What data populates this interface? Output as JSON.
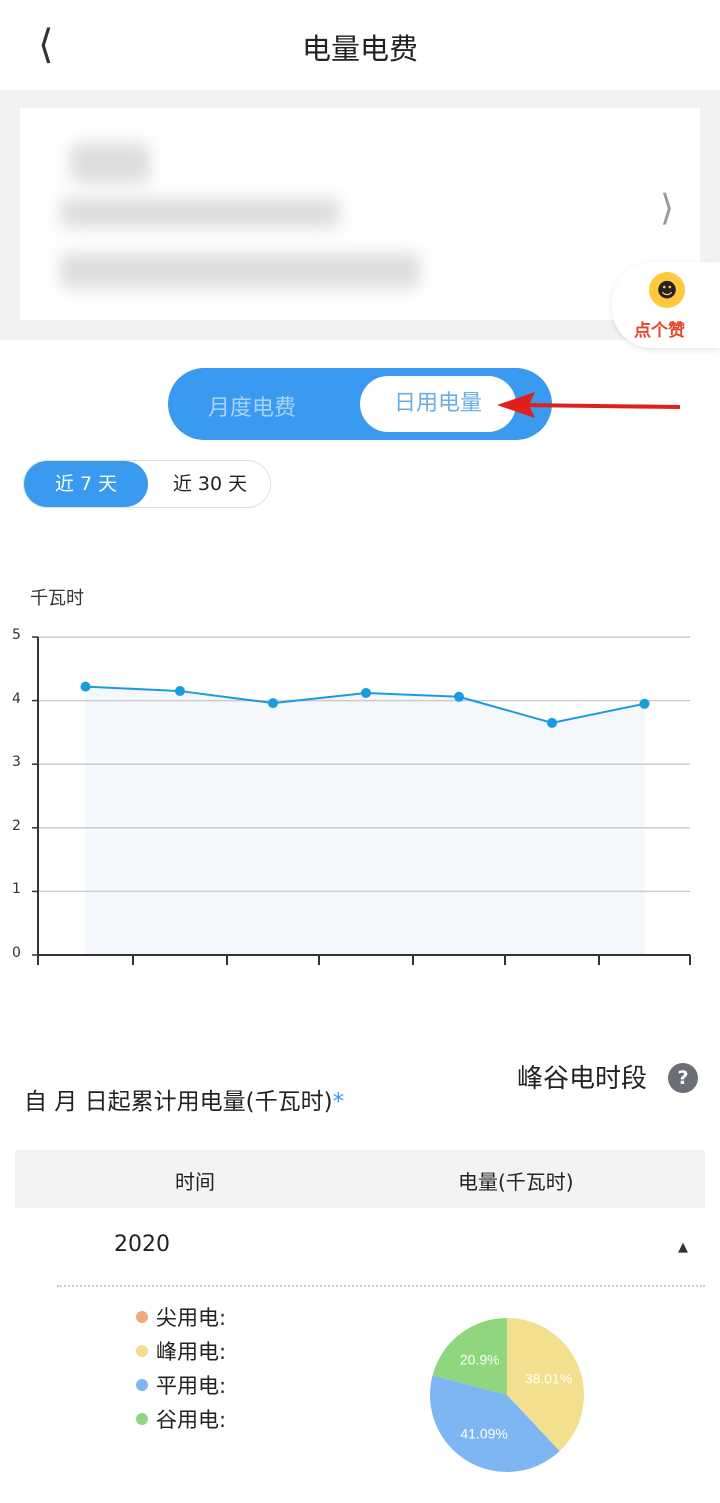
{
  "header": {
    "title": "电量电费",
    "back_icon": "chevron-left-icon"
  },
  "account_card": {
    "chevron_icon": "chevron-right-icon"
  },
  "like_badge": {
    "label": "点个赞",
    "icon": "smile-face-icon"
  },
  "mode_toggle": {
    "options": [
      "月度电费",
      "日用电量"
    ],
    "selected": "日用电量"
  },
  "range_toggle": {
    "options": [
      "近 7 天",
      "近 30 天"
    ],
    "selected": "近 7 天"
  },
  "chart_data": {
    "type": "area",
    "ylabel": "千瓦时",
    "ylim": [
      0,
      5
    ],
    "yticks": [
      "0",
      "1",
      "2",
      "3",
      "4",
      "5"
    ],
    "values": [
      4.22,
      4.15,
      3.96,
      4.12,
      4.06,
      3.65,
      3.95
    ],
    "grid": true,
    "line_color": "#1a9be0",
    "fill_color": "#f4f7fc"
  },
  "cumulative": {
    "title": "自  月  日起累计用电量(千瓦时)",
    "star": "*"
  },
  "peak_valley": {
    "label": "峰谷电时段",
    "help_icon": "?"
  },
  "table": {
    "headers": [
      "时间",
      "电量(千瓦时)"
    ],
    "year": "2020"
  },
  "pie": {
    "legend": [
      {
        "label": "尖用电:",
        "color": "#f0a97a"
      },
      {
        "label": "峰用电:",
        "color": "#f3dd8f"
      },
      {
        "label": "平用电:",
        "color": "#7db6f2"
      },
      {
        "label": "谷用电:",
        "color": "#8fd67e"
      }
    ],
    "slices": [
      {
        "label": "38.01%",
        "value": 38.01,
        "color": "#f3e08f"
      },
      {
        "label": "41.09%",
        "value": 41.09,
        "color": "#7db6f2"
      },
      {
        "label": "20.9%",
        "value": 20.9,
        "color": "#8fd67e"
      }
    ]
  }
}
